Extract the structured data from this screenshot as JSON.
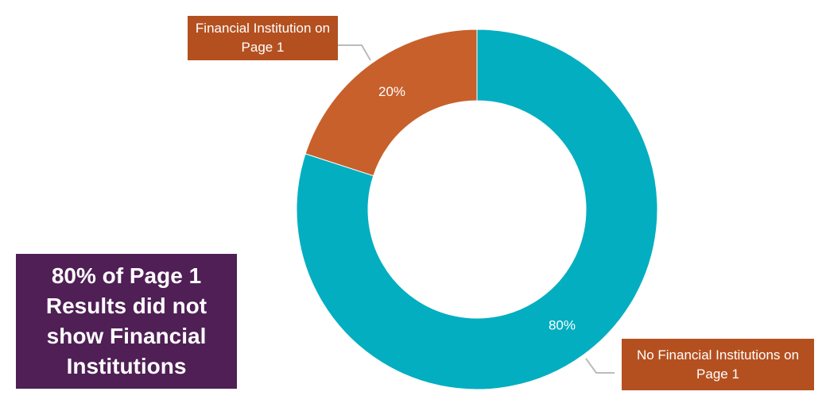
{
  "chart_data": {
    "type": "pie",
    "categories": [
      "Financial Institution on Page 1",
      "No Financial Institutions on Page 1"
    ],
    "values": [
      20,
      80
    ],
    "value_labels": [
      "20%",
      "80%"
    ],
    "colors": [
      "#c8602c",
      "#03aec0"
    ],
    "annotation": "80% of Page 1 Results did not show Financial Institutions"
  }
}
